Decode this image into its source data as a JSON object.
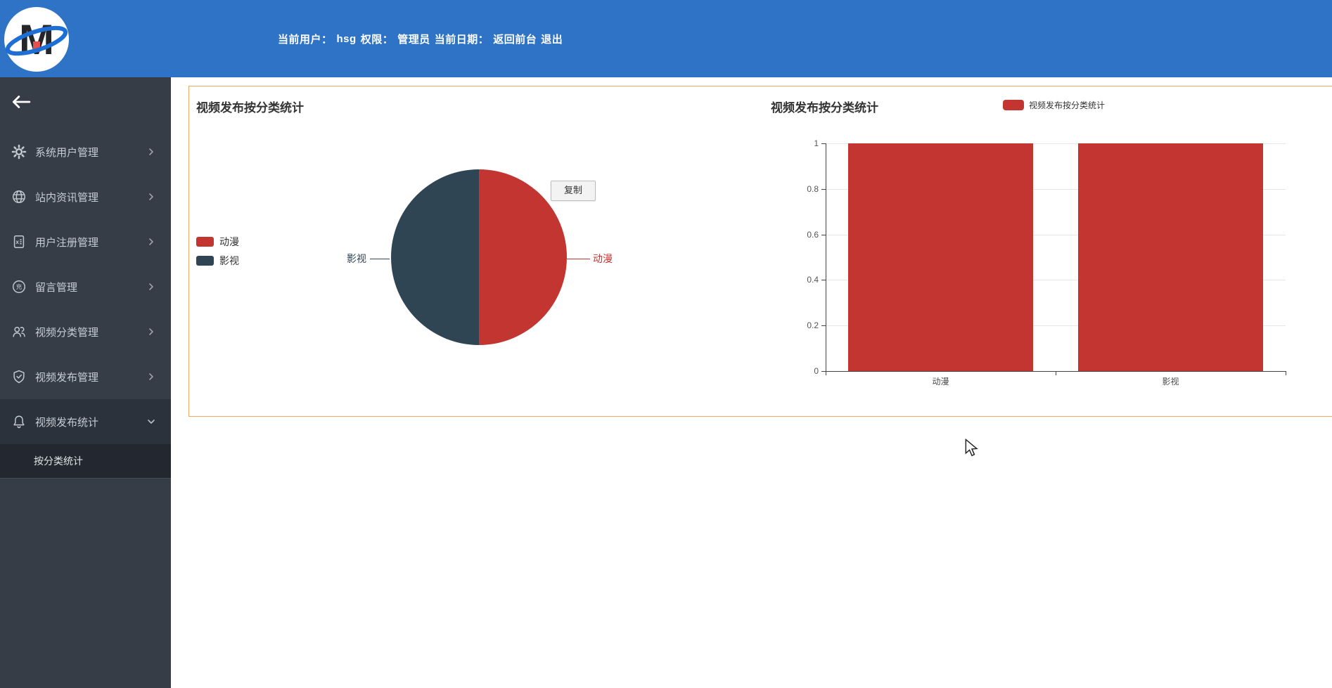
{
  "header": {
    "user_label": "当前用户：",
    "user_value": "hsg",
    "role_label": "权限：",
    "role_value": "管理员",
    "date_label": "当前日期：",
    "back_link": "返回前台",
    "logout_link": "退出",
    "logo": "M-logo"
  },
  "sidebar": {
    "back_icon": "arrow-left-icon",
    "items": [
      {
        "label": "系统用户管理",
        "icon": "gear-icon",
        "chevron": "right"
      },
      {
        "label": "站内资讯管理",
        "icon": "globe-icon",
        "chevron": "right"
      },
      {
        "label": "用户注册管理",
        "icon": "file-excel-icon",
        "chevron": "right"
      },
      {
        "label": "留言管理",
        "icon": "coin-icon",
        "chevron": "right"
      },
      {
        "label": "视频分类管理",
        "icon": "users-icon",
        "chevron": "right"
      },
      {
        "label": "视频发布管理",
        "icon": "shield-check-icon",
        "chevron": "right"
      },
      {
        "label": "视频发布统计",
        "icon": "bell-icon",
        "chevron": "down",
        "expanded": true
      }
    ],
    "submenu": [
      {
        "label": "按分类统计",
        "active": true
      }
    ]
  },
  "chart_data": [
    {
      "type": "pie",
      "title": "视频发布按分类统计",
      "legend_position": "left",
      "legend": [
        "动漫",
        "影视"
      ],
      "labels": [
        "动漫",
        "影视"
      ],
      "values": [
        1,
        1
      ],
      "percents": [
        50,
        50
      ],
      "colors": [
        "#c23531",
        "#2f4554"
      ],
      "tooltip_button": "复制"
    },
    {
      "type": "bar",
      "title": "视频发布按分类统计",
      "legend_position": "top-right",
      "legend": [
        "视频发布按分类统计"
      ],
      "categories": [
        "动漫",
        "影视"
      ],
      "series": [
        {
          "name": "视频发布按分类统计",
          "values": [
            1,
            1
          ]
        }
      ],
      "color": "#c23531",
      "ylim": [
        0,
        1
      ],
      "yticks": [
        0,
        0.2,
        0.4,
        0.6,
        0.8,
        1
      ],
      "grid": true
    }
  ],
  "colors": {
    "header_bg": "#2e73c5",
    "sidebar_bg": "#373d47",
    "sidebar_expanded_bg": "#2c323b",
    "submenu_bg": "#23272f",
    "panel_border": "#f0a865",
    "series_red": "#c23531",
    "series_dark": "#2f4554"
  }
}
